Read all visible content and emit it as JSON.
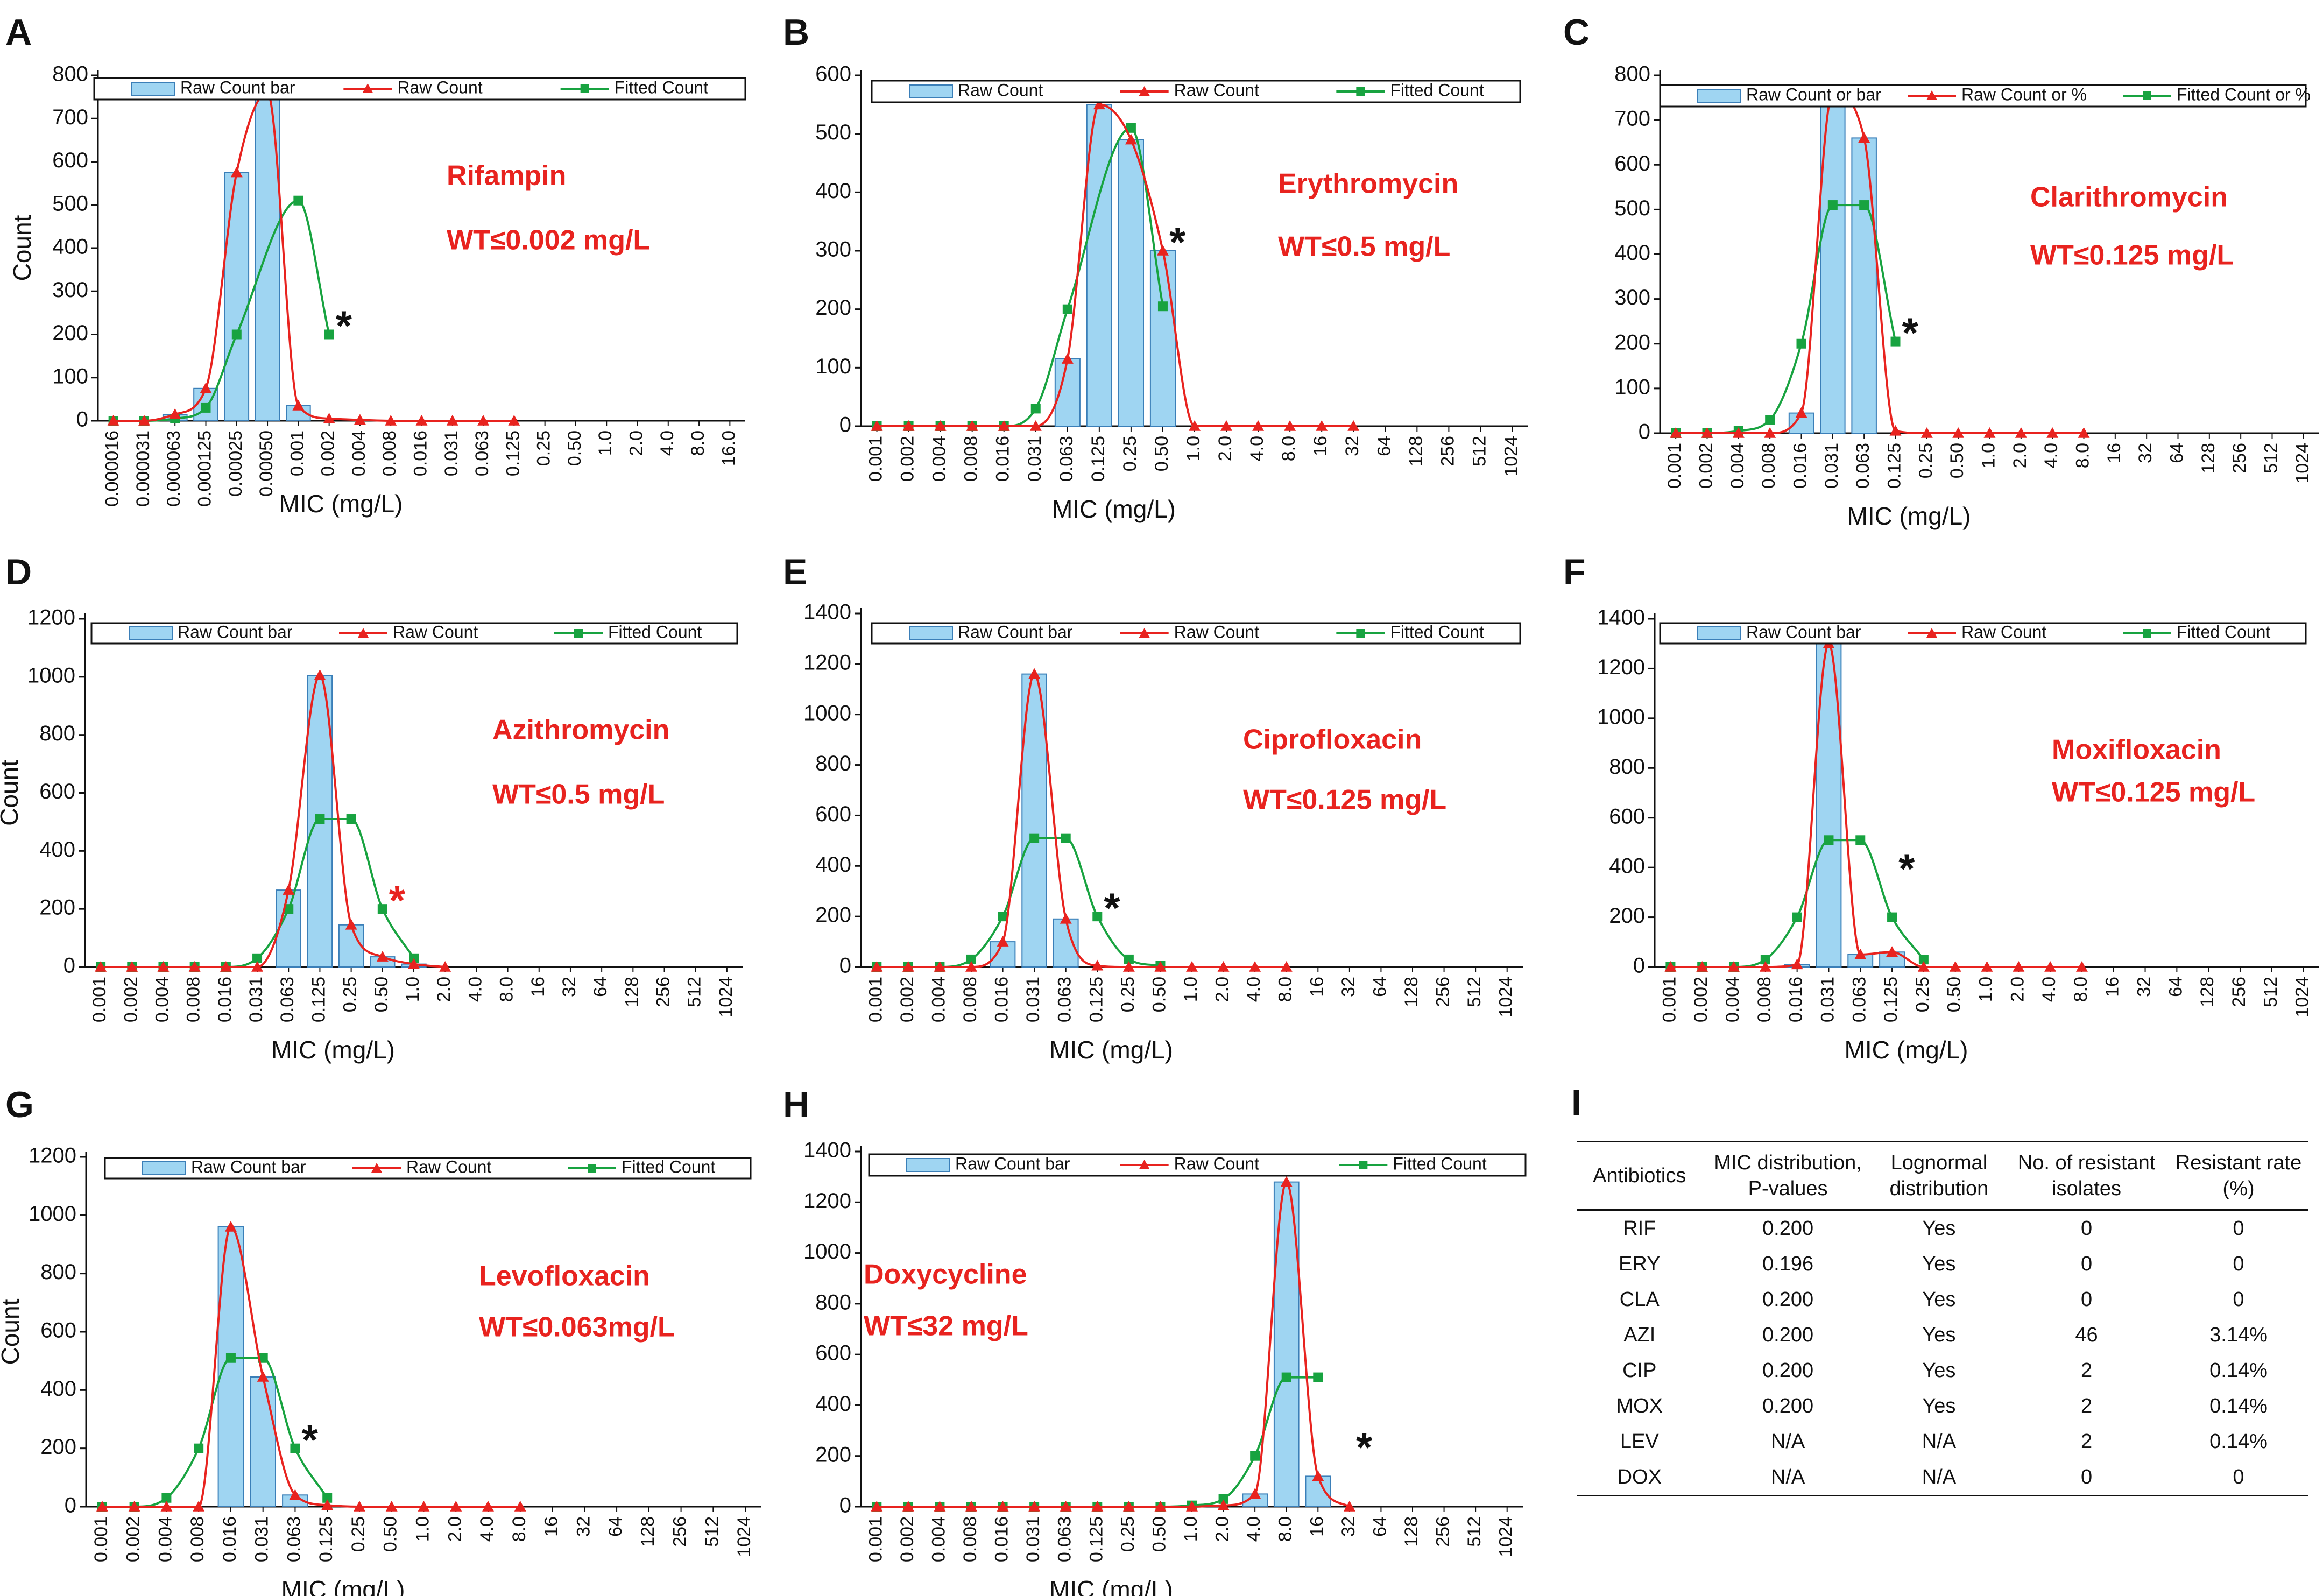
{
  "colors": {
    "bar_fill": "#9fd5f2",
    "bar_stroke": "#3b7fb8",
    "raw_line": "#e8231f",
    "fit_line": "#18a340",
    "annotation": "#e8231f"
  },
  "chart_data": [
    {
      "panel": "A",
      "type": "bar+line",
      "drug": "Rifampin",
      "wt": "WT≤0.002 mg/L",
      "ylabel": "Count",
      "xlabel": "MIC (mg/L)",
      "ylim": [
        0,
        800
      ],
      "yticks": [
        0,
        100,
        200,
        300,
        400,
        500,
        600,
        700,
        800
      ],
      "legend": [
        "Raw Count bar",
        "Raw Count",
        "Fitted Count"
      ],
      "categories": [
        "0.000016",
        "0.000031",
        "0.000063",
        "0.000125",
        "0.00025",
        "0.00050",
        "0.001",
        "0.002",
        "0.004",
        "0.008",
        "0.016",
        "0.031",
        "0.063",
        "0.125",
        "0.25",
        "0.50",
        "1.0",
        "2.0",
        "4.0",
        "8.0",
        "16.0"
      ],
      "bars": [
        0,
        0,
        15,
        75,
        575,
        760,
        35,
        0,
        0,
        0,
        0,
        0,
        0,
        0,
        0,
        0,
        0,
        0,
        0,
        0,
        0
      ],
      "raw": [
        0,
        0,
        15,
        75,
        575,
        760,
        35,
        5,
        2,
        0,
        0,
        0,
        0,
        0,
        null,
        null,
        null,
        null,
        null,
        null,
        null
      ],
      "fitted": [
        0,
        0,
        5,
        30,
        200,
        null,
        510,
        200,
        null,
        null,
        null,
        null,
        null,
        null,
        null,
        null,
        null,
        null,
        null,
        null,
        null
      ],
      "star": {
        "index": 7,
        "value": 200,
        "red": false
      }
    },
    {
      "panel": "B",
      "type": "bar+line",
      "drug": "Erythromycin",
      "wt": "WT≤0.5 mg/L",
      "ylabel": "",
      "xlabel": "MIC (mg/L)",
      "ylim": [
        0,
        600
      ],
      "yticks": [
        0,
        100,
        200,
        300,
        400,
        500,
        600
      ],
      "legend": [
        "Raw Count",
        "Raw Count",
        "Fitted Count"
      ],
      "categories": [
        "0.001",
        "0.002",
        "0.004",
        "0.008",
        "0.016",
        "0.031",
        "0.063",
        "0.125",
        "0.25",
        "0.50",
        "1.0",
        "2.0",
        "4.0",
        "8.0",
        "16",
        "32",
        "64",
        "128",
        "256",
        "512",
        "1024"
      ],
      "bars": [
        0,
        0,
        0,
        0,
        0,
        0,
        115,
        550,
        490,
        300,
        0,
        0,
        0,
        0,
        0,
        0,
        0,
        0,
        0,
        0,
        0
      ],
      "raw": [
        0,
        0,
        0,
        0,
        0,
        0,
        115,
        550,
        490,
        300,
        0,
        0,
        0,
        0,
        0,
        0,
        null,
        null,
        null,
        null,
        null
      ],
      "fitted": [
        0,
        0,
        0,
        0,
        0,
        30,
        200,
        null,
        510,
        205,
        null,
        null,
        null,
        null,
        null,
        null,
        null,
        null,
        null,
        null,
        null
      ],
      "star": {
        "index": 9,
        "value": 300,
        "red": false
      }
    },
    {
      "panel": "C",
      "type": "bar+line",
      "drug": "Clarithromycin",
      "wt": "WT≤0.125 mg/L",
      "ylabel": "",
      "xlabel": "MIC (mg/L)",
      "ylim": [
        0,
        800
      ],
      "yticks": [
        0,
        100,
        200,
        300,
        400,
        500,
        600,
        700,
        800
      ],
      "legend": [
        "Raw Count or bar",
        "Raw Count or %",
        "Fitted Count or %"
      ],
      "categories": [
        "0.001",
        "0.002",
        "0.004",
        "0.008",
        "0.016",
        "0.031",
        "0.063",
        "0.125",
        "0.25",
        "0.50",
        "1.0",
        "2.0",
        "4.0",
        "8.0",
        "16",
        "32",
        "64",
        "128",
        "256",
        "512",
        "1024"
      ],
      "bars": [
        0,
        0,
        0,
        0,
        45,
        760,
        660,
        0,
        0,
        0,
        0,
        0,
        0,
        0,
        0,
        0,
        0,
        0,
        0,
        0,
        0
      ],
      "raw": [
        0,
        0,
        0,
        0,
        45,
        760,
        660,
        5,
        0,
        0,
        0,
        0,
        0,
        0,
        null,
        null,
        null,
        null,
        null,
        null,
        null
      ],
      "fitted": [
        0,
        0,
        5,
        30,
        200,
        510,
        510,
        205,
        null,
        null,
        null,
        null,
        null,
        null,
        null,
        null,
        null,
        null,
        null,
        null,
        null
      ],
      "star": {
        "index": 7,
        "value": 205,
        "red": false
      }
    },
    {
      "panel": "D",
      "type": "bar+line",
      "drug": "Azithromycin",
      "wt": "WT≤0.5 mg/L",
      "ylabel": "Count",
      "xlabel": "MIC (mg/L)",
      "ylim": [
        0,
        1200
      ],
      "yticks": [
        0,
        200,
        400,
        600,
        800,
        1000,
        1200
      ],
      "legend": [
        "Raw Count bar",
        "Raw Count",
        "Fitted Count"
      ],
      "categories": [
        "0.001",
        "0.002",
        "0.004",
        "0.008",
        "0.016",
        "0.031",
        "0.063",
        "0.125",
        "0.25",
        "0.50",
        "1.0",
        "2.0",
        "4.0",
        "8.0",
        "16",
        "32",
        "64",
        "128",
        "256",
        "512",
        "1024"
      ],
      "bars": [
        0,
        0,
        0,
        0,
        0,
        0,
        265,
        1005,
        145,
        35,
        10,
        0,
        0,
        0,
        0,
        0,
        0,
        0,
        0,
        0,
        0
      ],
      "raw": [
        0,
        0,
        0,
        0,
        0,
        0,
        265,
        1005,
        145,
        35,
        10,
        0,
        null,
        null,
        null,
        null,
        null,
        null,
        null,
        null,
        null
      ],
      "fitted": [
        0,
        0,
        0,
        0,
        0,
        30,
        200,
        510,
        510,
        200,
        30,
        null,
        null,
        null,
        null,
        null,
        null,
        null,
        null,
        null,
        null
      ],
      "star": {
        "index": 9,
        "value": 200,
        "red": true
      }
    },
    {
      "panel": "E",
      "type": "bar+line",
      "drug": "Ciprofloxacin",
      "wt": "WT≤0.125 mg/L",
      "ylabel": "",
      "xlabel": "MIC (mg/L)",
      "ylim": [
        0,
        1400
      ],
      "yticks": [
        0,
        200,
        400,
        600,
        800,
        1000,
        1200,
        1400
      ],
      "legend": [
        "Raw Count bar",
        "Raw Count",
        "Fitted Count"
      ],
      "categories": [
        "0.001",
        "0.002",
        "0.004",
        "0.008",
        "0.016",
        "0.031",
        "0.063",
        "0.125",
        "0.25",
        "0.50",
        "1.0",
        "2.0",
        "4.0",
        "8.0",
        "16",
        "32",
        "64",
        "128",
        "256",
        "512",
        "1024"
      ],
      "bars": [
        0,
        0,
        0,
        0,
        100,
        1160,
        190,
        0,
        0,
        0,
        0,
        0,
        0,
        0,
        0,
        0,
        0,
        0,
        0,
        0,
        0
      ],
      "raw": [
        0,
        0,
        0,
        0,
        100,
        1160,
        190,
        5,
        0,
        0,
        0,
        0,
        0,
        0,
        null,
        null,
        null,
        null,
        null,
        null,
        null
      ],
      "fitted": [
        0,
        0,
        0,
        30,
        200,
        510,
        510,
        200,
        30,
        5,
        null,
        null,
        null,
        null,
        null,
        null,
        null,
        null,
        null,
        null,
        null
      ],
      "star": {
        "index": 7,
        "value": 200,
        "red": false
      }
    },
    {
      "panel": "F",
      "type": "bar+line",
      "drug": "Moxifloxacin",
      "wt": "WT≤0.125 mg/L",
      "ylabel": "",
      "xlabel": "MIC (mg/L)",
      "ylim": [
        0,
        1400
      ],
      "yticks": [
        0,
        200,
        400,
        600,
        800,
        1000,
        1200,
        1400
      ],
      "legend": [
        "Raw Count bar",
        "Raw Count",
        "Fitted Count"
      ],
      "categories": [
        "0.001",
        "0.002",
        "0.004",
        "0.008",
        "0.016",
        "0.031",
        "0.063",
        "0.125",
        "0.25",
        "0.50",
        "1.0",
        "2.0",
        "4.0",
        "8.0",
        "16",
        "32",
        "64",
        "128",
        "256",
        "512",
        "1024"
      ],
      "bars": [
        0,
        0,
        0,
        0,
        10,
        1300,
        50,
        60,
        0,
        0,
        0,
        0,
        0,
        0,
        0,
        0,
        0,
        0,
        0,
        0,
        0
      ],
      "raw": [
        0,
        0,
        0,
        0,
        10,
        1300,
        50,
        60,
        0,
        0,
        0,
        0,
        0,
        0,
        null,
        null,
        null,
        null,
        null,
        null,
        null
      ],
      "fitted": [
        0,
        0,
        0,
        30,
        200,
        510,
        510,
        200,
        30,
        null,
        null,
        null,
        null,
        null,
        null,
        null,
        null,
        null,
        null,
        null,
        null
      ],
      "star": {
        "index": 7,
        "value": 360,
        "red": false
      }
    },
    {
      "panel": "G",
      "type": "bar+line",
      "drug": "Levofloxacin",
      "wt": "WT≤0.063mg/L",
      "ylabel": "Count",
      "xlabel": "MIC (mg/L)",
      "ylim": [
        0,
        1200
      ],
      "yticks": [
        0,
        200,
        400,
        600,
        800,
        1000,
        1200
      ],
      "legend": [
        "Raw Count bar",
        "Raw Count",
        "Fitted Count"
      ],
      "categories": [
        "0.001",
        "0.002",
        "0.004",
        "0.008",
        "0.016",
        "0.031",
        "0.063",
        "0.125",
        "0.25",
        "0.50",
        "1.0",
        "2.0",
        "4.0",
        "8.0",
        "16",
        "32",
        "64",
        "128",
        "256",
        "512",
        "1024"
      ],
      "bars": [
        0,
        0,
        0,
        0,
        960,
        445,
        40,
        0,
        0,
        0,
        0,
        0,
        0,
        0,
        0,
        0,
        0,
        0,
        0,
        0,
        0
      ],
      "raw": [
        0,
        0,
        0,
        0,
        960,
        445,
        40,
        5,
        0,
        0,
        0,
        0,
        0,
        0,
        null,
        null,
        null,
        null,
        null,
        null,
        null
      ],
      "fitted": [
        0,
        0,
        30,
        200,
        510,
        510,
        200,
        30,
        null,
        null,
        null,
        null,
        null,
        null,
        null,
        null,
        null,
        null,
        null,
        null,
        null
      ],
      "star": {
        "index": 6,
        "value": 200,
        "red": false
      }
    },
    {
      "panel": "H",
      "type": "bar+line",
      "drug": "Doxycycline",
      "wt": "WT≤32 mg/L",
      "ylabel": "",
      "xlabel": "MIC (mg/L)",
      "ylim": [
        0,
        1400
      ],
      "yticks": [
        0,
        200,
        400,
        600,
        800,
        1000,
        1200,
        1400
      ],
      "legend": [
        "Raw Count bar",
        "Raw Count",
        "Fitted Count"
      ],
      "categories": [
        "0.001",
        "0.002",
        "0.004",
        "0.008",
        "0.016",
        "0.031",
        "0.063",
        "0.125",
        "0.25",
        "0.50",
        "1.0",
        "2.0",
        "4.0",
        "8.0",
        "16",
        "32",
        "64",
        "128",
        "256",
        "512",
        "1024"
      ],
      "bars": [
        0,
        0,
        0,
        0,
        0,
        0,
        0,
        0,
        0,
        0,
        0,
        0,
        50,
        1280,
        120,
        0,
        0,
        0,
        0,
        0,
        0
      ],
      "raw": [
        0,
        0,
        0,
        0,
        0,
        0,
        0,
        0,
        0,
        0,
        0,
        5,
        50,
        1280,
        120,
        0,
        null,
        null,
        null,
        null,
        null
      ],
      "fitted": [
        0,
        0,
        0,
        0,
        0,
        0,
        0,
        0,
        0,
        0,
        5,
        30,
        200,
        510,
        510,
        null,
        null,
        null,
        null,
        null,
        null
      ],
      "star": {
        "index": 15,
        "value": 200,
        "red": false
      }
    }
  ],
  "table": {
    "label": "I",
    "headers": [
      "Antibiotics",
      "MIC  distribution, P-values",
      "Lognormal distribution",
      "No. of resistant isolates",
      "Resistant rate (%)"
    ],
    "rows": [
      [
        "RIF",
        "0.200",
        "Yes",
        "0",
        "0"
      ],
      [
        "ERY",
        "0.196",
        "Yes",
        "0",
        "0"
      ],
      [
        "CLA",
        "0.200",
        "Yes",
        "0",
        "0"
      ],
      [
        "AZI",
        "0.200",
        "Yes",
        "46",
        "3.14%"
      ],
      [
        "CIP",
        "0.200",
        "Yes",
        "2",
        "0.14%"
      ],
      [
        "MOX",
        "0.200",
        "Yes",
        "2",
        "0.14%"
      ],
      [
        "LEV",
        "N/A",
        "N/A",
        "2",
        "0.14%"
      ],
      [
        "DOX",
        "N/A",
        "N/A",
        "0",
        "0"
      ]
    ]
  }
}
